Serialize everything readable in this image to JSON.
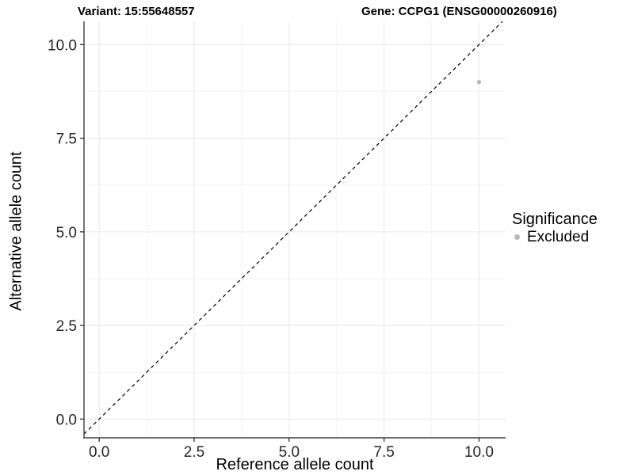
{
  "chart_data": {
    "type": "scatter",
    "title_left": "Variant: 15:55648557",
    "title_right": "Gene: CCPG1 (ENSG00000260916)",
    "xlabel": "Reference allele count",
    "ylabel": "Alternative allele count",
    "xlim": [
      -0.4,
      10.7
    ],
    "ylim": [
      -0.5,
      10.62
    ],
    "x_ticks": [
      0,
      2.5,
      5,
      7.5,
      10
    ],
    "y_ticks": [
      0,
      2.5,
      5,
      7.5,
      10
    ],
    "x_tick_labels": [
      "0.0",
      "2.5",
      "5.0",
      "7.5",
      "10.0"
    ],
    "y_tick_labels": [
      "0.0",
      "2.5",
      "5.0",
      "7.5",
      "10.0"
    ],
    "grid": "major+minor",
    "legend_position": "right",
    "legend": {
      "title": "Significance",
      "items": [
        {
          "label": "Excluded",
          "color": "#b9b9b9"
        }
      ]
    },
    "series": [
      {
        "name": "Excluded",
        "color": "#b9b9b9",
        "points": [
          {
            "x": 10,
            "y": 9
          }
        ]
      }
    ],
    "reference_line": {
      "type": "identity",
      "slope": 1,
      "intercept": 0,
      "style": "dashed",
      "color": "#000000"
    }
  },
  "colors": {
    "grid_major": "#e7e7e7",
    "grid_minor": "#f3f3f3",
    "axis_line": "#3d3d3d",
    "tick_mark": "#333333",
    "tick_label": "#262626",
    "background": "#ffffff"
  }
}
